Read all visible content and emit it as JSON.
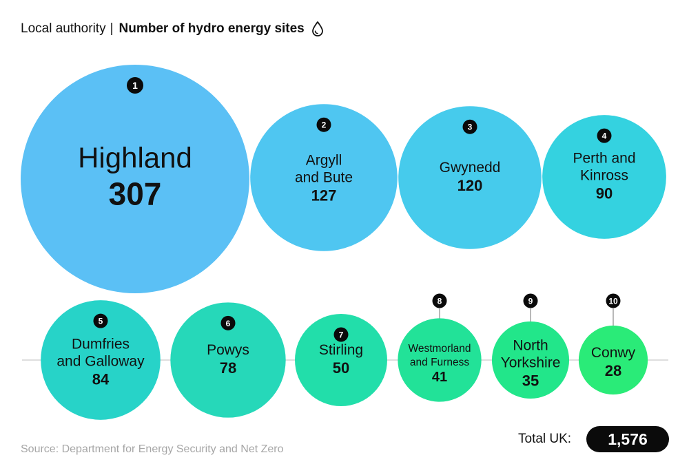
{
  "header": {
    "dimension_label": "Local authority",
    "separator": "|",
    "measure_label": "Number of hydro energy sites",
    "icon": "water-drop-icon"
  },
  "chart_data": {
    "type": "bubble",
    "title": "Number of hydro energy sites",
    "categories": [
      "Highland",
      "Argyll and Bute",
      "Gwynedd",
      "Perth and Kinross",
      "Dumfries and Galloway",
      "Powys",
      "Stirling",
      "Westmorland and Furness",
      "North Yorkshire",
      "Conwy"
    ],
    "values": [
      307,
      127,
      120,
      90,
      84,
      78,
      50,
      41,
      35,
      28
    ],
    "ranks": [
      1,
      2,
      3,
      4,
      5,
      6,
      7,
      8,
      9,
      10
    ],
    "label_lines": [
      [
        "Highland"
      ],
      [
        "Argyll",
        "and Bute"
      ],
      [
        "Gwynedd"
      ],
      [
        "Perth and",
        "Kinross"
      ],
      [
        "Dumfries",
        "and Galloway"
      ],
      [
        "Powys"
      ],
      [
        "Stirling"
      ],
      [
        "Westmorland",
        "and Furness"
      ],
      [
        "North",
        "Yorkshire"
      ],
      [
        "Conwy"
      ]
    ],
    "colors": [
      "#5bc0f5",
      "#4fc6f1",
      "#46cbec",
      "#34d2e0",
      "#27d3c8",
      "#26d8b9",
      "#22deaa",
      "#22e298",
      "#22e68a",
      "#2aeb78"
    ]
  },
  "footer": {
    "source": "Source: Department for Energy Security and Net Zero",
    "total_label": "Total UK:",
    "total_value": "1,576"
  }
}
